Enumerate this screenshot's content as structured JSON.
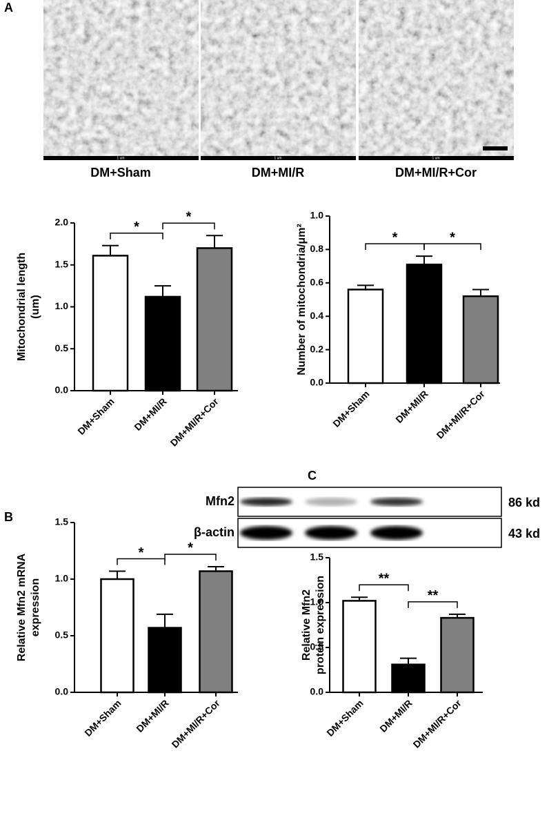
{
  "panels": [
    "A",
    "B",
    "C"
  ],
  "images": [
    {
      "caption": "DM+Sham",
      "scale": "1 um"
    },
    {
      "caption": "DM+MI/R",
      "scale": "1 um"
    },
    {
      "caption": "DM+MI/R+Cor",
      "scale": "1 um"
    }
  ],
  "blot": {
    "rows": [
      {
        "label": "Mfn2",
        "size": "86 kd"
      },
      {
        "label": "β-actin",
        "size": "43 kd"
      }
    ]
  },
  "chart_data": [
    {
      "type": "bar",
      "ylabel": [
        "Mitochondrial length",
        "(um)"
      ],
      "categories": [
        "DM+Sham",
        "DM+MI/R",
        "DM+MI/R+Cor"
      ],
      "values": [
        1.61,
        1.12,
        1.7
      ],
      "errors": [
        0.12,
        0.13,
        0.15
      ],
      "colors": [
        "#ffffff",
        "#000000",
        "#808080"
      ],
      "ylim": [
        0,
        2
      ],
      "yticks": [
        {
          "value": 0,
          "label": "0.0"
        },
        0.5,
        {
          "value": 1,
          "label": "1.0"
        },
        1.5,
        {
          "value": 2,
          "label": "2.0"
        }
      ],
      "annotations": [
        {
          "text": "*",
          "from": 0,
          "to": 1
        },
        {
          "text": "*",
          "from": 1,
          "to": 2
        }
      ]
    },
    {
      "type": "bar",
      "ylabel": [
        "Number of mitochondria/μm²"
      ],
      "categories": [
        "DM+Sham",
        "DM+MI/R",
        "DM+MI/R+Cor"
      ],
      "values": [
        0.56,
        0.71,
        0.52
      ],
      "errors": [
        0.025,
        0.05,
        0.04
      ],
      "colors": [
        "#ffffff",
        "#000000",
        "#808080"
      ],
      "ylim": [
        0,
        1
      ],
      "yticks": [
        {
          "value": 0,
          "label": "0.0"
        },
        0.2,
        0.4,
        0.6,
        0.8,
        {
          "value": 1,
          "label": "1.0"
        }
      ],
      "annotations": [
        {
          "text": "*",
          "from": 0,
          "to": 1
        },
        {
          "text": "*",
          "from": 1,
          "to": 2
        }
      ]
    },
    {
      "type": "bar",
      "ylabel": [
        "Relative Mfn2 mRNA",
        "expression"
      ],
      "categories": [
        "DM+Sham",
        "DM+MI/R",
        "DM+MI/R+Cor"
      ],
      "values": [
        1.0,
        0.57,
        1.07
      ],
      "errors": [
        0.07,
        0.12,
        0.04
      ],
      "colors": [
        "#ffffff",
        "#000000",
        "#808080"
      ],
      "ylim": [
        0,
        1.5
      ],
      "yticks": [
        {
          "value": 0,
          "label": "0.0"
        },
        0.5,
        {
          "value": 1,
          "label": "1.0"
        },
        1.5
      ],
      "annotations": [
        {
          "text": "*",
          "from": 0,
          "to": 1
        },
        {
          "text": "*",
          "from": 1,
          "to": 2
        }
      ]
    },
    {
      "type": "bar",
      "ylabel": [
        "Relative Mfn2",
        "protein expression"
      ],
      "categories": [
        "DM+Sham",
        "DM+MI/R",
        "DM+MI/R+Cor"
      ],
      "values": [
        1.02,
        0.31,
        0.83
      ],
      "errors": [
        0.04,
        0.07,
        0.04
      ],
      "colors": [
        "#ffffff",
        "#000000",
        "#808080"
      ],
      "ylim": [
        0,
        1.5
      ],
      "yticks": [
        {
          "value": 0,
          "label": "0.0"
        },
        0.5,
        {
          "value": 1,
          "label": "1.0"
        },
        1.5
      ],
      "annotations": [
        {
          "text": "**",
          "from": 0,
          "to": 1
        },
        {
          "text": "**",
          "from": 1,
          "to": 2
        }
      ]
    }
  ]
}
